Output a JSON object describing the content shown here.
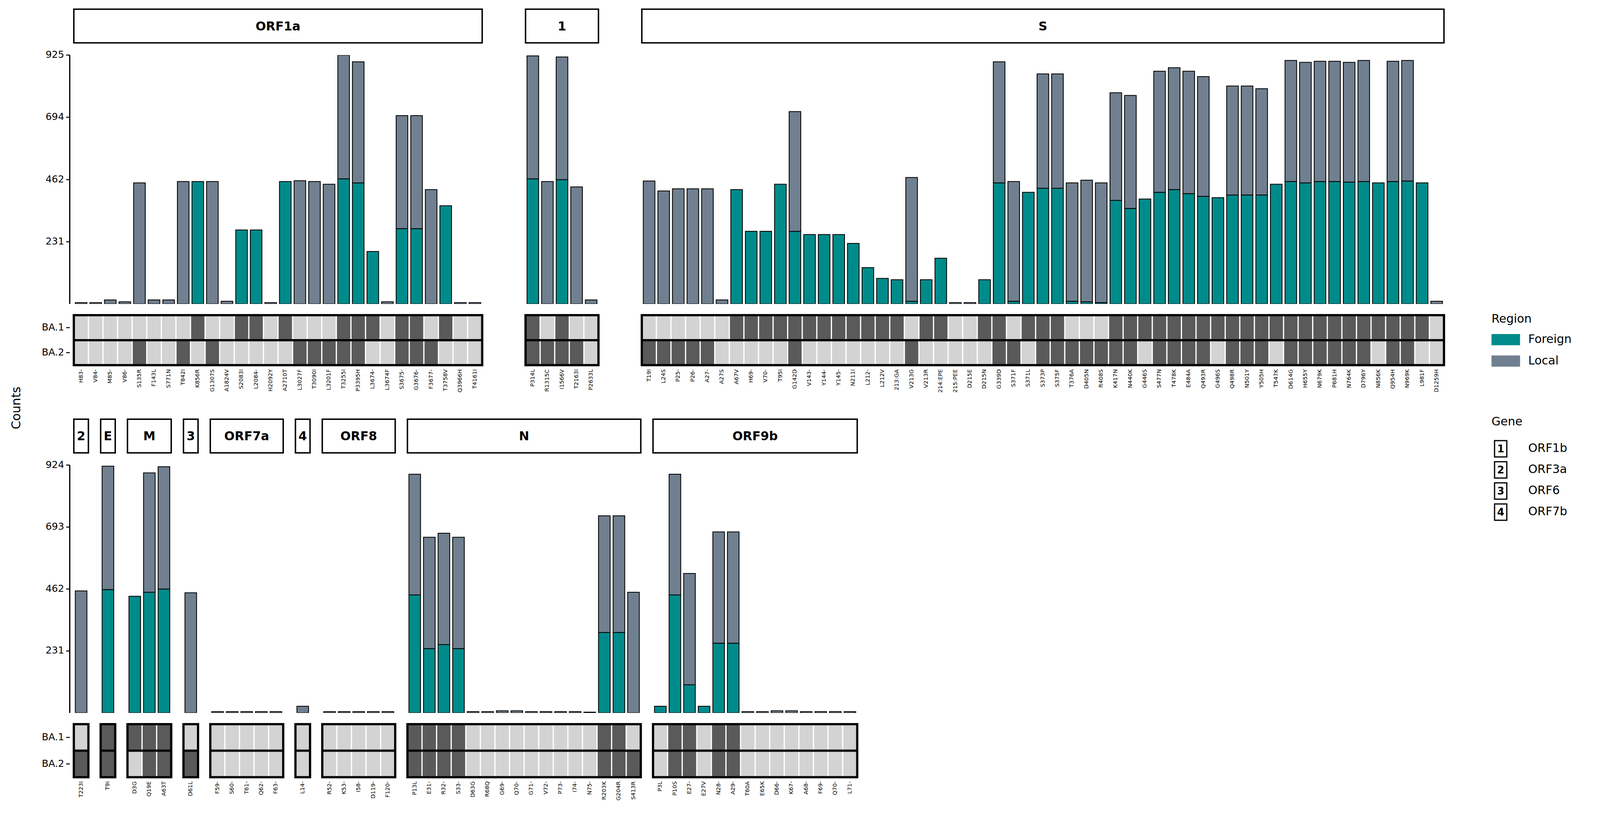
{
  "chart_data": {
    "type": "bar",
    "stacked": true,
    "y_label": "Counts",
    "legend": "right",
    "legend_title": "Region",
    "series": [
      {
        "name": "Foreign",
        "color": "#008b8b"
      },
      {
        "name": "Local",
        "color": "#708090"
      }
    ],
    "heatmap_rows": [
      "BA.1",
      "BA.2"
    ],
    "gene_legend": {
      "title": "Gene",
      "items": [
        {
          "key": "1",
          "label": "ORF1b"
        },
        {
          "key": "2",
          "label": "ORF3a"
        },
        {
          "key": "3",
          "label": "ORF6"
        },
        {
          "key": "4",
          "label": "ORF7b"
        }
      ]
    },
    "rows": [
      {
        "ylim": [
          0,
          925
        ],
        "yticks": [
          231,
          462,
          694,
          925
        ],
        "panels": [
          {
            "title": "ORF1a",
            "categories": [
              "H83-",
              "V84-",
              "M85-",
              "V86-",
              "S135R",
              "F143L",
              "S771N",
              "T842I",
              "K856R",
              "G1307S",
              "A1824V",
              "S2083I",
              "L2084-",
              "H2092Y",
              "A2710T",
              "L3027F",
              "T3090I",
              "L3201F",
              "T3255I",
              "P3395H",
              "L3674-",
              "L3674F",
              "S3675-",
              "G3676-",
              "F3677-",
              "T3758V",
              "Q3966H",
              "T4161I"
            ],
            "series": [
              {
                "values": [
                  0,
                  0,
                  0,
                  0,
                  0,
                  0,
                  0,
                  0,
                  455,
                  0,
                  0,
                  275,
                  275,
                  0,
                  455,
                  0,
                  0,
                  0,
                  465,
                  450,
                  195,
                  0,
                  280,
                  280,
                  0,
                  365,
                  0,
                  0
                ]
              },
              {
                "values": [
                  5,
                  5,
                  15,
                  8,
                  450,
                  15,
                  15,
                  455,
                  0,
                  455,
                  10,
                  0,
                  0,
                  5,
                  0,
                  458,
                  455,
                  445,
                  460,
                  450,
                  0,
                  8,
                  420,
                  420,
                  425,
                  0,
                  5,
                  5
                ]
              }
            ],
            "cells": [
              [
                0,
                0,
                0,
                0,
                0,
                0,
                0,
                0,
                1,
                0,
                0,
                1,
                1,
                0,
                1,
                0,
                0,
                0,
                1,
                1,
                1,
                0,
                1,
                1,
                0,
                1,
                0,
                0
              ],
              [
                0,
                0,
                0,
                0,
                1,
                0,
                0,
                1,
                0,
                1,
                0,
                0,
                0,
                0,
                0,
                1,
                1,
                1,
                1,
                1,
                0,
                0,
                1,
                1,
                1,
                0,
                0,
                0
              ]
            ]
          },
          {
            "title": "1",
            "categories": [
              "P314L",
              "R1315C",
              "I1566V",
              "T2163I",
              "P2633L"
            ],
            "series": [
              {
                "values": [
                  465,
                  0,
                  462,
                  0,
                  0
                ]
              },
              {
                "values": [
                  457,
                  455,
                  456,
                  435,
                  15
                ]
              }
            ],
            "cells": [
              [
                1,
                0,
                1,
                0,
                0
              ],
              [
                1,
                1,
                1,
                1,
                0
              ]
            ]
          },
          {
            "title": "S",
            "categories": [
              "T19I",
              "L24S",
              "P25-",
              "P26-",
              "A27-",
              "A27S",
              "A67V",
              "H69-",
              "V70-",
              "T95I",
              "G142D",
              "V143-",
              "Y144-",
              "Y145-",
              "N211I",
              "L212-",
              "L212V",
              "213:GA",
              "V213G",
              "V213R",
              "214:EPE",
              "215:PEE",
              "D215E",
              "D215N",
              "G339D",
              "S371F",
              "S371L",
              "S373P",
              "S375F",
              "T376A",
              "D405N",
              "R408S",
              "K417N",
              "N440K",
              "G446S",
              "S477N",
              "T478K",
              "E484A",
              "Q493R",
              "G496S",
              "Q498R",
              "N501Y",
              "Y505H",
              "T547K",
              "D614G",
              "H655Y",
              "N679K",
              "P681H",
              "N764K",
              "D796Y",
              "N856K",
              "Q954H",
              "N969K",
              "L981F",
              "D1259H"
            ],
            "series": [
              {
                "values": [
                  0,
                  0,
                  0,
                  0,
                  0,
                  0,
                  425,
                  270,
                  270,
                  445,
                  270,
                  258,
                  258,
                  258,
                  225,
                  135,
                  95,
                  90,
                  10,
                  90,
                  170,
                  0,
                  0,
                  90,
                  450,
                  10,
                  415,
                  430,
                  430,
                  10,
                  8,
                  5,
                  385,
                  355,
                  390,
                  415,
                  425,
                  410,
                  400,
                  395,
                  405,
                  405,
                  405,
                  445,
                  455,
                  450,
                  455,
                  455,
                  453,
                  455,
                  450,
                  455,
                  457,
                  450,
                  0
                ]
              },
              {
                "values": [
                  457,
                  420,
                  428,
                  428,
                  428,
                  15,
                  0,
                  0,
                  0,
                  0,
                  445,
                  0,
                  0,
                  0,
                  0,
                  0,
                  0,
                  0,
                  460,
                  0,
                  0,
                  5,
                  5,
                  0,
                  450,
                  445,
                  0,
                  425,
                  425,
                  440,
                  452,
                  445,
                  400,
                  420,
                  0,
                  450,
                  453,
                  455,
                  445,
                  0,
                  405,
                  405,
                  395,
                  0,
                  450,
                  448,
                  447,
                  447,
                  445,
                  450,
                  0,
                  447,
                  448,
                  0,
                  10
                ]
              }
            ],
            "cells": [
              [
                0,
                0,
                0,
                0,
                0,
                0,
                1,
                1,
                1,
                1,
                1,
                1,
                1,
                1,
                1,
                1,
                1,
                1,
                0,
                1,
                1,
                0,
                0,
                1,
                1,
                0,
                1,
                1,
                1,
                0,
                0,
                0,
                1,
                1,
                1,
                1,
                1,
                1,
                1,
                1,
                1,
                1,
                1,
                1,
                1,
                1,
                1,
                1,
                1,
                1,
                1,
                1,
                1,
                1,
                0
              ],
              [
                1,
                1,
                1,
                1,
                1,
                0,
                0,
                0,
                0,
                0,
                1,
                0,
                0,
                0,
                0,
                0,
                0,
                0,
                1,
                0,
                0,
                0,
                0,
                0,
                1,
                1,
                0,
                1,
                1,
                1,
                1,
                1,
                1,
                1,
                0,
                1,
                1,
                1,
                1,
                0,
                1,
                1,
                1,
                0,
                1,
                1,
                1,
                1,
                1,
                1,
                0,
                1,
                1,
                0,
                0
              ]
            ]
          }
        ]
      },
      {
        "ylim": [
          0,
          924
        ],
        "yticks": [
          231,
          462,
          693,
          924
        ],
        "panels": [
          {
            "title": "2",
            "categories": [
              "T223I"
            ],
            "series": [
              {
                "values": [
                  0
                ]
              },
              {
                "values": [
                  455
                ]
              }
            ],
            "cells": [
              [
                0
              ],
              [
                1
              ]
            ]
          },
          {
            "title": "E",
            "categories": [
              "T9I"
            ],
            "series": [
              {
                "values": [
                  460
                ]
              },
              {
                "values": [
                  460
                ]
              }
            ],
            "cells": [
              [
                1
              ],
              [
                1
              ]
            ]
          },
          {
            "title": "M",
            "categories": [
              "D3G",
              "Q19E",
              "A63T"
            ],
            "series": [
              {
                "values": [
                  435,
                  450,
                  462
                ]
              },
              {
                "values": [
                  0,
                  445,
                  456
                ]
              }
            ],
            "cells": [
              [
                1,
                1,
                1
              ],
              [
                0,
                1,
                1
              ]
            ]
          },
          {
            "title": "3",
            "categories": [
              "D61L"
            ],
            "series": [
              {
                "values": [
                  0
                ]
              },
              {
                "values": [
                  448
                ]
              }
            ],
            "cells": [
              [
                0
              ],
              [
                1
              ]
            ]
          },
          {
            "title": "ORF7a",
            "categories": [
              "F59-",
              "S60-",
              "T61-",
              "Q62-",
              "F63-"
            ],
            "series": [
              {
                "values": [
                  0,
                  0,
                  0,
                  0,
                  0
                ]
              },
              {
                "values": [
                  5,
                  5,
                  5,
                  5,
                  5
                ]
              }
            ],
            "cells": [
              [
                0,
                0,
                0,
                0,
                0
              ],
              [
                0,
                0,
                0,
                0,
                0
              ]
            ]
          },
          {
            "title": "4",
            "categories": [
              "L14-"
            ],
            "series": [
              {
                "values": [
                  0
                ]
              },
              {
                "values": [
                  25
                ]
              }
            ],
            "cells": [
              [
                0
              ],
              [
                0
              ]
            ]
          },
          {
            "title": "ORF8",
            "categories": [
              "R52-",
              "K53-",
              "I58-",
              "D119-",
              "F120-"
            ],
            "series": [
              {
                "values": [
                  0,
                  0,
                  0,
                  0,
                  0
                ]
              },
              {
                "values": [
                  5,
                  5,
                  5,
                  5,
                  5
                ]
              }
            ],
            "cells": [
              [
                0,
                0,
                0,
                0,
                0
              ],
              [
                0,
                0,
                0,
                0,
                0
              ]
            ]
          },
          {
            "title": "N",
            "categories": [
              "P13L",
              "E31-",
              "R32-",
              "S33-",
              "D63G",
              "R68Q",
              "G69-",
              "Q70-",
              "G71-",
              "V72-",
              "P73-",
              "I74-",
              "N75-",
              "R203K",
              "G204R",
              "S413R"
            ],
            "series": [
              {
                "values": [
                  440,
                  240,
                  255,
                  240,
                  0,
                  0,
                  0,
                  0,
                  0,
                  0,
                  0,
                  0,
                  0,
                  300,
                  300,
                  0
                ]
              },
              {
                "values": [
                  450,
                  415,
                  415,
                  415,
                  5,
                  5,
                  8,
                  8,
                  5,
                  5,
                  5,
                  5,
                  3,
                  435,
                  435,
                  450
                ]
              }
            ],
            "cells": [
              [
                1,
                1,
                1,
                1,
                0,
                0,
                0,
                0,
                0,
                0,
                0,
                0,
                0,
                1,
                1,
                0
              ],
              [
                1,
                1,
                1,
                1,
                0,
                0,
                0,
                0,
                0,
                0,
                0,
                0,
                0,
                1,
                1,
                1
              ]
            ]
          },
          {
            "title": "ORF9b",
            "categories": [
              "P3L",
              "P10S",
              "E27-",
              "E27V",
              "N28-",
              "A29-",
              "T60A",
              "E65K",
              "D66-",
              "K67-",
              "A68-",
              "F69-",
              "Q70-",
              "L71-"
            ],
            "series": [
              {
                "values": [
                  25,
                  440,
                  105,
                  25,
                  260,
                  260,
                  0,
                  0,
                  0,
                  0,
                  0,
                  0,
                  0,
                  0
                ]
              },
              {
                "values": [
                  0,
                  450,
                  415,
                  0,
                  415,
                  415,
                  5,
                  5,
                  8,
                  8,
                  5,
                  5,
                  5,
                  5
                ]
              }
            ],
            "cells": [
              [
                0,
                1,
                1,
                0,
                1,
                1,
                0,
                0,
                0,
                0,
                0,
                0,
                0,
                0
              ],
              [
                0,
                1,
                1,
                0,
                1,
                1,
                0,
                0,
                0,
                0,
                0,
                0,
                0,
                0
              ]
            ]
          }
        ]
      }
    ]
  }
}
